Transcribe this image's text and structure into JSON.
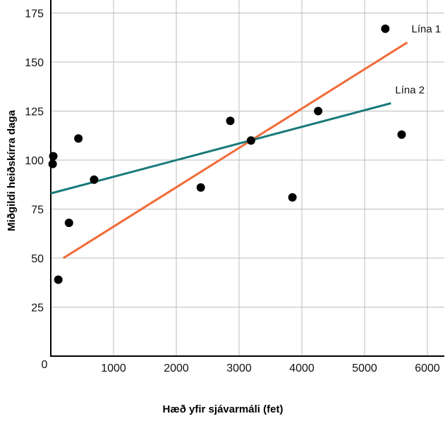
{
  "chart_data": {
    "type": "scatter",
    "xlabel": "Hæð yfir sjávarmáli (fet)",
    "ylabel": "Miðgildi heiðskírra daga",
    "xlim": [
      0,
      6300
    ],
    "ylim": [
      0,
      175
    ],
    "x_ticks": [
      1000,
      2000,
      3000,
      4000,
      5000,
      6000
    ],
    "x_tick_labels": [
      "1000",
      "2000",
      "3000",
      "4000",
      "5000",
      "6000"
    ],
    "origin_label": "0",
    "y_ticks": [
      25,
      50,
      75,
      100,
      125,
      150,
      175
    ],
    "y_tick_labels": [
      "25",
      "50",
      "75",
      "100",
      "125",
      "150",
      "175"
    ],
    "grid": true,
    "points": [
      {
        "x": 30,
        "y": 98
      },
      {
        "x": 40,
        "y": 102
      },
      {
        "x": 120,
        "y": 39
      },
      {
        "x": 290,
        "y": 68
      },
      {
        "x": 440,
        "y": 111
      },
      {
        "x": 690,
        "y": 90
      },
      {
        "x": 2390,
        "y": 86
      },
      {
        "x": 2860,
        "y": 120
      },
      {
        "x": 3190,
        "y": 110
      },
      {
        "x": 3850,
        "y": 81
      },
      {
        "x": 4260,
        "y": 125
      },
      {
        "x": 5330,
        "y": 167
      },
      {
        "x": 5590,
        "y": 113
      }
    ],
    "lines": [
      {
        "label": "Lína 1",
        "color": "#f26b38",
        "x": [
          200,
          5680
        ],
        "y": [
          50,
          160
        ]
      },
      {
        "label": "Lína 2",
        "color": "#1a7a7a",
        "x": [
          0,
          5420
        ],
        "y": [
          83,
          129
        ]
      }
    ],
    "point_color": "#000000",
    "grid_color": "#bdbdbd",
    "axis_color": "#000000"
  }
}
